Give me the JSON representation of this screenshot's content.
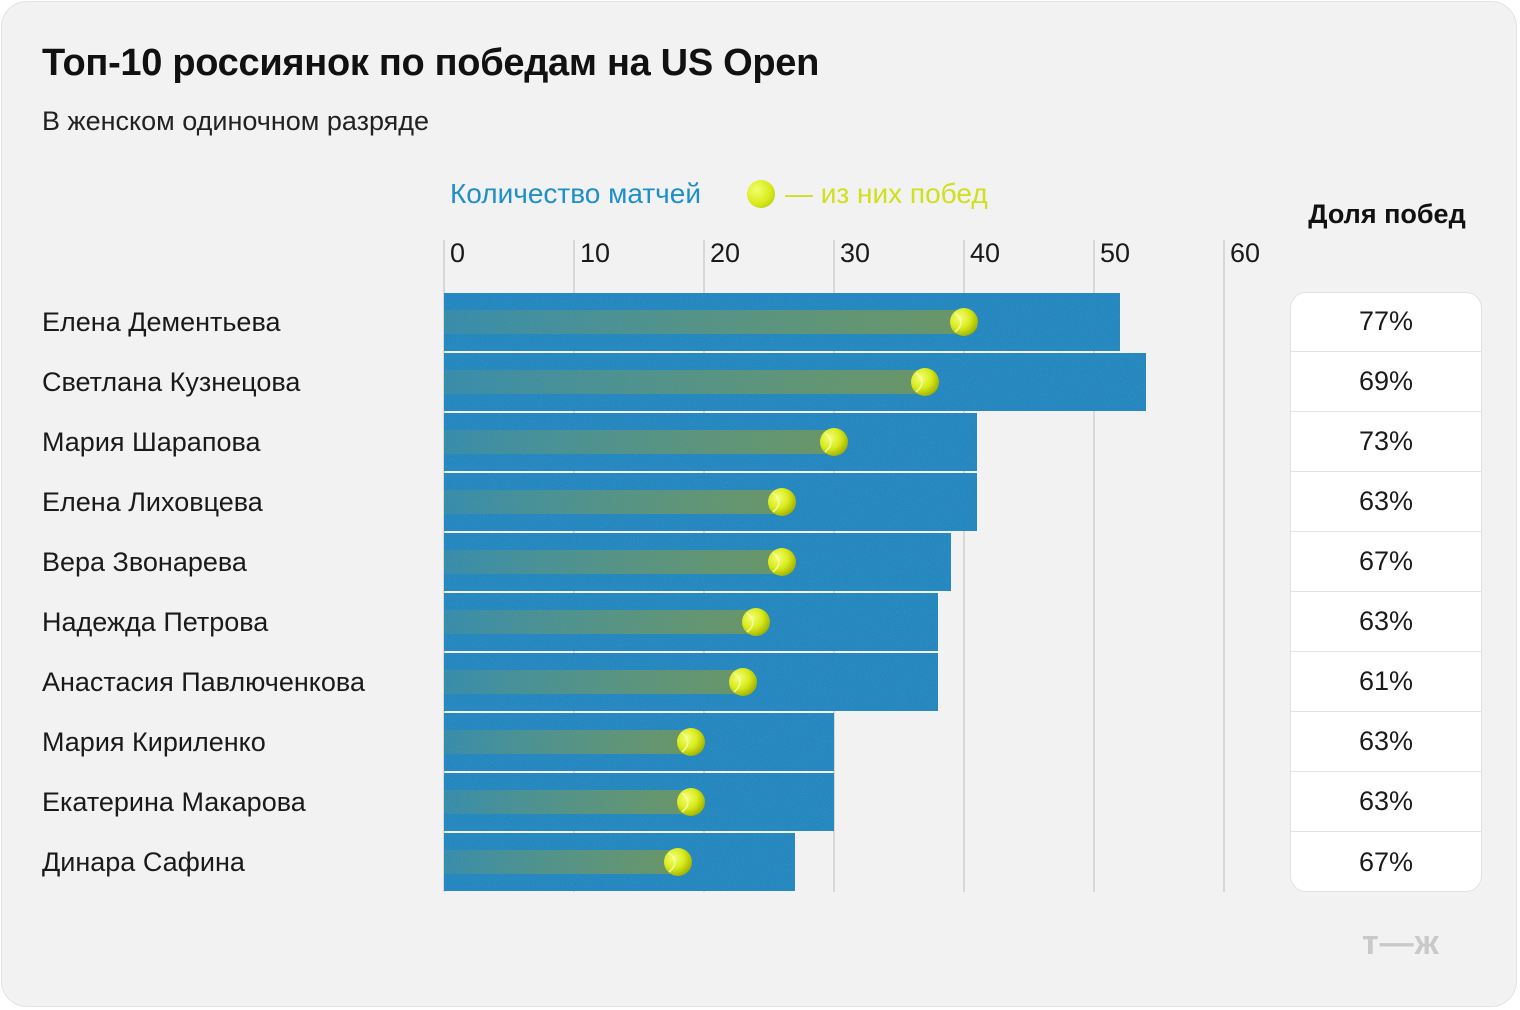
{
  "title": "Топ-10 россиянок по победам на US Open",
  "subtitle": "В женском одиночном разряде",
  "legend": {
    "matches_label": "Количество матчей",
    "wins_label": "— из них побед"
  },
  "share_header": "Доля побед",
  "logo": "т—ж",
  "colors": {
    "bar": "#1d7fbb",
    "ball": "#d8ea1b",
    "matches_text": "#1f8fca",
    "wins_text": "#d0e01d"
  },
  "chart_data": {
    "type": "bar",
    "orientation": "horizontal",
    "categories": [
      "Елена Дементьева",
      "Светлана Кузнецова",
      "Мария Шарапова",
      "Елена Лиховцева",
      "Вера Звонарева",
      "Надежда Петрова",
      "Анастасия Павлюченкова",
      "Мария Кириленко",
      "Екатерина Макарова",
      "Динара Сафина"
    ],
    "series": [
      {
        "name": "Количество матчей",
        "values": [
          52,
          54,
          41,
          41,
          39,
          38,
          38,
          30,
          30,
          27
        ]
      },
      {
        "name": "— из них побед",
        "values": [
          40,
          37,
          30,
          26,
          26,
          24,
          23,
          19,
          19,
          18
        ]
      }
    ],
    "share": [
      "77%",
      "69%",
      "73%",
      "63%",
      "67%",
      "63%",
      "61%",
      "63%",
      "63%",
      "67%"
    ],
    "xlim": [
      0,
      60
    ],
    "xticks": [
      "0",
      "10",
      "20",
      "30",
      "40",
      "50",
      "60"
    ],
    "grid": true
  }
}
